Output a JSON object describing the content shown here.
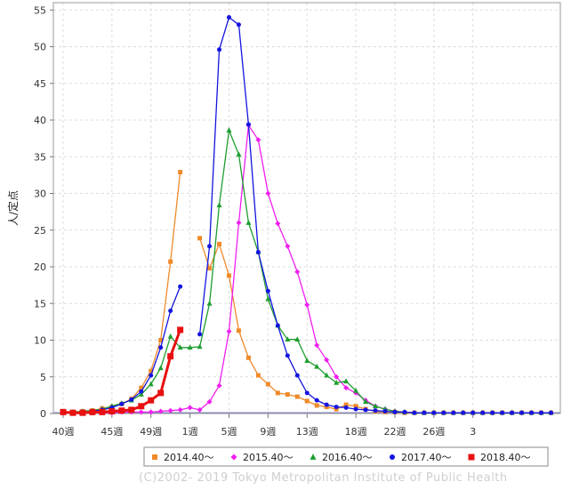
{
  "chart_data": {
    "type": "line",
    "ylabel": "人/定点",
    "ylim": [
      0,
      56
    ],
    "y_ticks": [
      0,
      5,
      10,
      15,
      20,
      25,
      30,
      35,
      40,
      45,
      50,
      55
    ],
    "x_week_labels": [
      "40週",
      "45週",
      "49週",
      "1週",
      "5週",
      "9週",
      "13週",
      "18週",
      "22週",
      "26週",
      "3"
    ],
    "grid": true,
    "legend_position": "bottom",
    "series": [
      {
        "name": "2014.40～",
        "color": "#ef8a2a",
        "marker": "square",
        "values": [
          0.2,
          0.2,
          0.3,
          0.4,
          0.7,
          0.9,
          1.3,
          2,
          3.5,
          5.8,
          10,
          20.7,
          32.9,
          null,
          23.9,
          19.8,
          23.1,
          18.8,
          11.3,
          7.6,
          5.2,
          4,
          2.8,
          2.6,
          2.3,
          1.7,
          1.1,
          0.9,
          0.6,
          1.2,
          1,
          0.6,
          0.3,
          0.2,
          0.2,
          0.1,
          0.1,
          0.1,
          0.1,
          0.1,
          0.1,
          0.1,
          0.1,
          0.1,
          0.1,
          0.1,
          0.1,
          0.1,
          0.1,
          0.1,
          0.1
        ]
      },
      {
        "name": "2015.40～",
        "color": "#f01ef0",
        "marker": "diamond",
        "values": [
          0.1,
          0.1,
          0.1,
          0.1,
          0.1,
          0.1,
          0.2,
          0.2,
          0.2,
          0.2,
          0.3,
          0.4,
          0.5,
          0.8,
          0.5,
          1.6,
          3.8,
          11.2,
          26,
          39.3,
          37.3,
          30,
          25.9,
          22.8,
          19.3,
          14.8,
          9.3,
          7.3,
          5,
          3.5,
          2.8,
          1.8,
          1,
          0.6,
          0.3,
          0.2,
          0.1,
          0.1,
          0.1,
          0.1,
          0.1,
          0.1,
          0.1,
          0.1,
          0.1,
          0.1,
          0.1,
          0.1,
          0.1,
          0.1,
          0.1
        ]
      },
      {
        "name": "2016.40～",
        "color": "#1e9e30",
        "marker": "triangle",
        "values": [
          0.2,
          0.2,
          0.3,
          0.4,
          0.6,
          1,
          1.4,
          1.8,
          2.6,
          4,
          6.2,
          10.5,
          9,
          9,
          9.1,
          15,
          28.4,
          38.6,
          35.3,
          26,
          22,
          15.6,
          12,
          10.1,
          10.1,
          7.2,
          6.4,
          5.2,
          4.2,
          4.4,
          3.1,
          1.6,
          1,
          0.6,
          0.3,
          0.2,
          0.1,
          0.1,
          0.1,
          0.1,
          0.1,
          0.1,
          0.1,
          0.1,
          0.1,
          0.1,
          0.1,
          0.1,
          0.1,
          0.1,
          0.1
        ]
      },
      {
        "name": "2017.40～",
        "color": "#1414e0",
        "marker": "circle",
        "values": [
          0.1,
          0.1,
          0.2,
          0.3,
          0.5,
          0.8,
          1.3,
          1.9,
          3,
          5.2,
          9,
          14,
          17.3,
          null,
          10.8,
          22.8,
          49.6,
          54,
          53,
          39.4,
          22,
          16.7,
          12,
          7.9,
          5.2,
          2.8,
          1.8,
          1.2,
          0.9,
          0.8,
          0.6,
          0.5,
          0.4,
          0.3,
          0.2,
          0.2,
          0.1,
          0.1,
          0.1,
          0.1,
          0.1,
          0.1,
          0.1,
          0.1,
          0.1,
          0.1,
          0.1,
          0.1,
          0.1,
          0.1,
          0.1
        ]
      },
      {
        "name": "2018.40～",
        "color": "#e81010",
        "marker": "square",
        "values": [
          0.2,
          0.1,
          0.1,
          0.2,
          0.2,
          0.3,
          0.4,
          0.5,
          1,
          1.8,
          2.8,
          7.8,
          11.4
        ]
      }
    ]
  },
  "footer": {
    "credit": "(C)2002- 2019 Tokyo Metropolitan Institute of Public Health"
  }
}
